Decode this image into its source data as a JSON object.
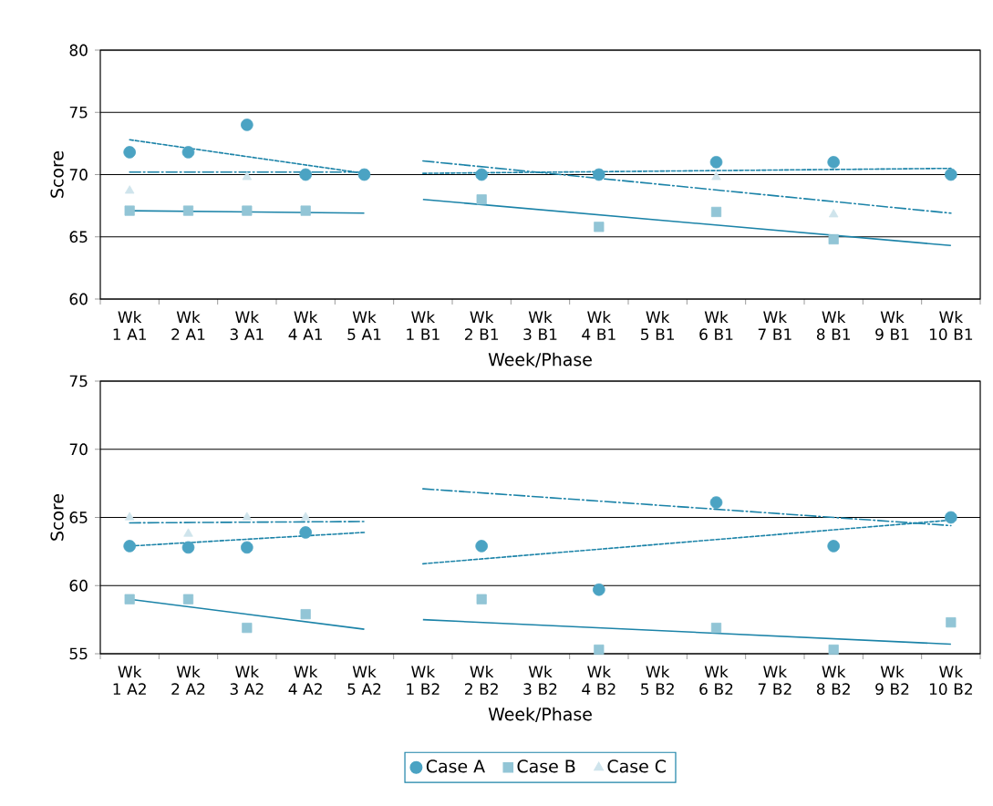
{
  "chart_data": [
    {
      "type": "scatter",
      "ylabel": "Score",
      "xlabel": "Week/Phase",
      "categories": [
        "Wk 1 A1",
        "Wk 2 A1",
        "Wk 3 A1",
        "Wk 4 A1",
        "Wk 5 A1",
        "Wk 1 B1",
        "Wk 2 B1",
        "Wk 3 B1",
        "Wk 4 B1",
        "Wk 5 B1",
        "Wk 6 B1",
        "Wk 7 B1",
        "Wk 8 B1",
        "Wk 9 B1",
        "Wk 10 B1"
      ],
      "ylim": [
        60,
        80
      ],
      "yticks": [
        60,
        65,
        70,
        75,
        80
      ],
      "grid": "y",
      "series": [
        {
          "color": "#4ba3c3",
          "marker": "circle",
          "values": [
            71.8,
            71.8,
            74,
            70,
            70,
            null,
            70,
            null,
            70,
            null,
            71,
            null,
            71,
            null,
            70
          ]
        },
        {
          "color": "#92c5d6",
          "marker": "square",
          "values": [
            67.1,
            67.1,
            67.1,
            67.1,
            null,
            null,
            68,
            null,
            65.8,
            null,
            67,
            null,
            64.8,
            null,
            null
          ]
        },
        {
          "color": "#cfe4ec",
          "marker": "triangle",
          "values": [
            68.7,
            null,
            69.8,
            null,
            null,
            null,
            null,
            null,
            null,
            null,
            69.8,
            null,
            66.8,
            null,
            null
          ]
        },
        {
          "type": "line",
          "color": "#1b83a8",
          "line_style": "dashed",
          "values": [
            72.8,
            null,
            null,
            null,
            70.1,
            null,
            null,
            null,
            null,
            null,
            null,
            null,
            null,
            null,
            null
          ]
        },
        {
          "type": "line",
          "color": "#1b83a8",
          "line_style": "dashed",
          "values": [
            null,
            null,
            null,
            null,
            null,
            70.1,
            null,
            null,
            null,
            null,
            null,
            null,
            null,
            null,
            70.5
          ]
        },
        {
          "type": "line",
          "color": "#1b83a8",
          "line_style": "solid",
          "values": [
            67.1,
            null,
            null,
            null,
            66.9,
            null,
            null,
            null,
            null,
            null,
            null,
            null,
            null,
            null,
            null
          ]
        },
        {
          "type": "line",
          "color": "#1b83a8",
          "line_style": "solid",
          "values": [
            null,
            null,
            null,
            null,
            null,
            68.0,
            null,
            null,
            null,
            null,
            null,
            null,
            null,
            null,
            64.3
          ]
        },
        {
          "type": "line",
          "color": "#1b83a8",
          "line_style": "dashdot",
          "values": [
            70.2,
            null,
            null,
            null,
            70.2,
            null,
            null,
            null,
            null,
            null,
            null,
            null,
            null,
            null,
            null
          ]
        },
        {
          "type": "line",
          "color": "#1b83a8",
          "line_style": "dashdot",
          "values": [
            null,
            null,
            null,
            null,
            null,
            71.1,
            null,
            null,
            null,
            null,
            null,
            null,
            null,
            null,
            66.9
          ]
        }
      ]
    },
    {
      "type": "scatter",
      "ylabel": "Score",
      "xlabel": "Week/Phase",
      "categories": [
        "Wk 1 A2",
        "Wk 2 A2",
        "Wk 3 A2",
        "Wk 4 A2",
        "Wk 5 A2",
        "Wk 1 B2",
        "Wk 2 B2",
        "Wk 3 B2",
        "Wk 4 B2",
        "Wk 5 B2",
        "Wk 6 B2",
        "Wk 7 B2",
        "Wk 8 B2",
        "Wk 9 B2",
        "Wk 10 B2"
      ],
      "ylim": [
        55,
        75
      ],
      "yticks": [
        55,
        60,
        65,
        70,
        75
      ],
      "grid": "y",
      "legend": "bottom",
      "series": [
        {
          "name": "Case A",
          "color": "#4ba3c3",
          "marker": "circle",
          "values": [
            62.9,
            62.8,
            62.8,
            63.9,
            null,
            null,
            62.9,
            null,
            59.7,
            null,
            66.1,
            null,
            62.9,
            null,
            65
          ]
        },
        {
          "name": "Case B",
          "color": "#92c5d6",
          "marker": "square",
          "values": [
            59,
            59,
            56.9,
            57.9,
            null,
            null,
            59,
            null,
            55.3,
            null,
            56.9,
            null,
            55.3,
            null,
            57.3
          ]
        },
        {
          "name": "Case C",
          "color": "#cfe4ec",
          "marker": "triangle",
          "values": [
            65,
            63.8,
            65,
            65,
            null,
            null,
            null,
            null,
            null,
            null,
            null,
            null,
            null,
            null,
            null
          ]
        },
        {
          "type": "line",
          "color": "#1b83a8",
          "line_style": "dashed",
          "values": [
            62.9,
            null,
            null,
            null,
            63.9,
            null,
            null,
            null,
            null,
            null,
            null,
            null,
            null,
            null,
            null
          ]
        },
        {
          "type": "line",
          "color": "#1b83a8",
          "line_style": "dashed",
          "values": [
            null,
            null,
            null,
            null,
            null,
            61.6,
            null,
            null,
            null,
            null,
            null,
            null,
            null,
            null,
            64.8
          ]
        },
        {
          "type": "line",
          "color": "#1b83a8",
          "line_style": "solid",
          "values": [
            59.0,
            null,
            null,
            null,
            56.8,
            null,
            null,
            null,
            null,
            null,
            null,
            null,
            null,
            null,
            null
          ]
        },
        {
          "type": "line",
          "color": "#1b83a8",
          "line_style": "solid",
          "values": [
            null,
            null,
            null,
            null,
            null,
            57.5,
            null,
            null,
            null,
            null,
            null,
            null,
            null,
            null,
            55.7
          ]
        },
        {
          "type": "line",
          "color": "#1b83a8",
          "line_style": "dashdot",
          "values": [
            64.6,
            null,
            null,
            null,
            64.7,
            null,
            null,
            null,
            null,
            null,
            null,
            null,
            null,
            null,
            null
          ]
        },
        {
          "type": "line",
          "color": "#1b83a8",
          "line_style": "dashdot",
          "values": [
            null,
            null,
            null,
            null,
            null,
            67.1,
            null,
            null,
            null,
            null,
            null,
            null,
            null,
            null,
            64.4
          ]
        }
      ]
    }
  ]
}
